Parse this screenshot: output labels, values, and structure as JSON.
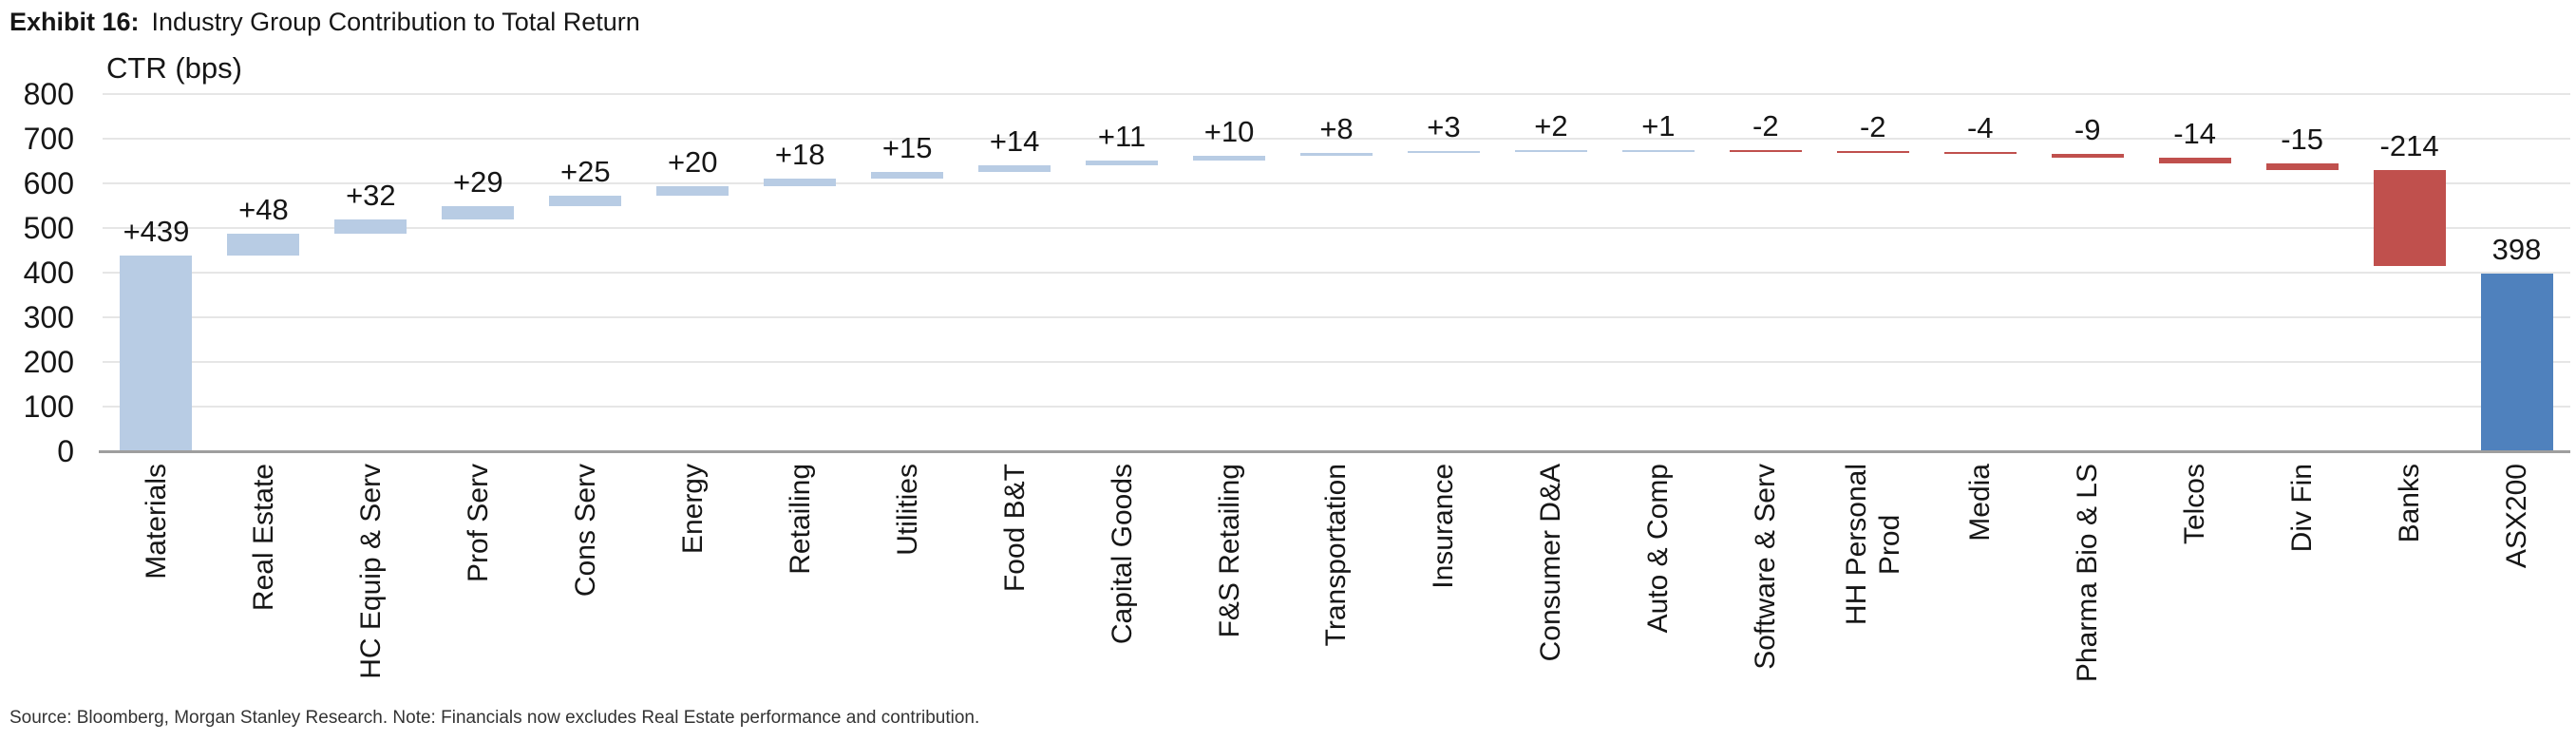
{
  "header": {
    "exhibit_label": "Exhibit 16:",
    "title": "Industry Group Contribution to Total Return"
  },
  "footer": {
    "source_note": "Source: Bloomberg, Morgan Stanley Research. Note: Financials now excludes Real Estate performance and contribution."
  },
  "chart_data": {
    "type": "bar",
    "subtype": "waterfall",
    "axis_title": "CTR (bps)",
    "ylim": [
      0,
      800
    ],
    "yticks": [
      0,
      100,
      200,
      300,
      400,
      500,
      600,
      700,
      800
    ],
    "grid": true,
    "legend": "none",
    "categories": [
      "Materials",
      "Real Estate",
      "HC Equip & Serv",
      "Prof Serv",
      "Cons Serv",
      "Energy",
      "Retailing",
      "Utilities",
      "Food B&T",
      "Capital Goods",
      "F&S Retailing",
      "Transportation",
      "Insurance",
      "Consumer D&A",
      "Auto & Comp",
      "Software & Serv",
      "HH Personal\nProd",
      "Media",
      "Pharma Bio & LS",
      "Telcos",
      "Div Fin",
      "Banks",
      "ASX200"
    ],
    "values": [
      439,
      48,
      32,
      29,
      25,
      20,
      18,
      15,
      14,
      11,
      10,
      8,
      3,
      2,
      1,
      -2,
      -2,
      -4,
      -9,
      -14,
      -15,
      -214,
      398
    ],
    "value_labels": [
      "+439",
      "+48",
      "+32",
      "+29",
      "+25",
      "+20",
      "+18",
      "+15",
      "+14",
      "+11",
      "+10",
      "+8",
      "+3",
      "+2",
      "+1",
      "-2",
      "-2",
      "-4",
      "-9",
      "-14",
      "-15",
      "-214",
      "398"
    ],
    "bar_roles": [
      "delta",
      "delta",
      "delta",
      "delta",
      "delta",
      "delta",
      "delta",
      "delta",
      "delta",
      "delta",
      "delta",
      "delta",
      "delta",
      "delta",
      "delta",
      "delta",
      "delta",
      "delta",
      "delta",
      "delta",
      "delta",
      "delta",
      "total"
    ],
    "colors": {
      "increase": "#b8cce4",
      "decrease": "#c0504d",
      "total": "#4f81bd",
      "gridline": "#e6e6e6",
      "axis_line": "#9e9e9e",
      "text": "#161616"
    }
  }
}
